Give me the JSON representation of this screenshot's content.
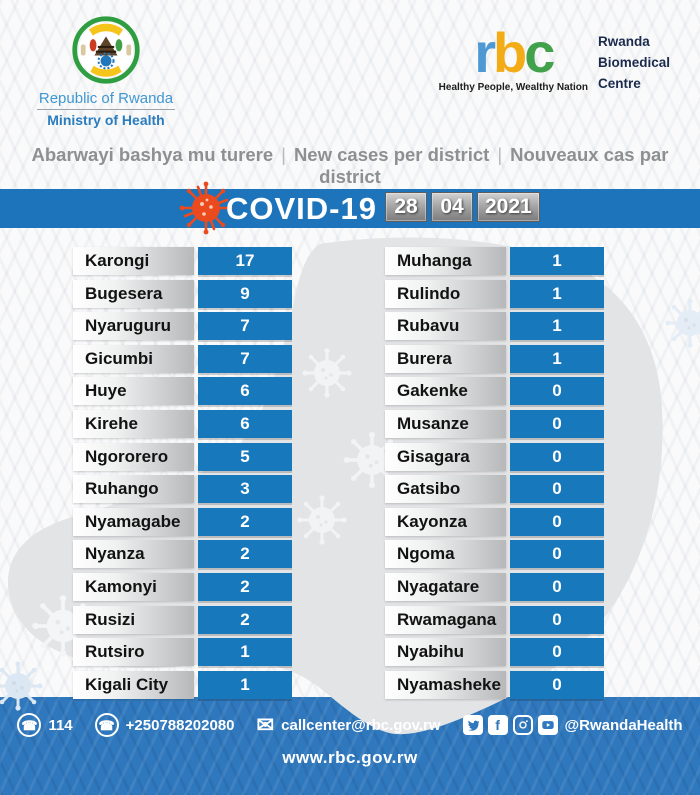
{
  "header": {
    "coat_of_arms": "rwanda-coat-of-arms",
    "republic": "Republic of Rwanda",
    "ministry": "Ministry of Health",
    "rbc_logo": {
      "letter_r": "r",
      "letter_b": "b",
      "letter_c": "c",
      "letter_colors": {
        "r": "#4e98d3",
        "b": "#f3ac15",
        "c": "#41a24b"
      },
      "name_lines": [
        "Rwanda",
        "Biomedical",
        "Centre"
      ],
      "tagline": "Healthy People, Wealthy Nation"
    },
    "subtitle": {
      "kinyarwanda": "Abarwayi bashya mu turere",
      "english": "New cases per district",
      "french": "Nouveaux cas par district",
      "separator": "|"
    }
  },
  "banner": {
    "title": "COVID-19",
    "date": {
      "day": "28",
      "month": "04",
      "year": "2021"
    }
  },
  "chart_data": {
    "type": "table",
    "title": "COVID-19 new cases per district",
    "date": "28/04/2021",
    "columns": [
      "District",
      "New cases"
    ],
    "left_column": [
      {
        "district": "Karongi",
        "cases": 17
      },
      {
        "district": "Bugesera",
        "cases": 9
      },
      {
        "district": "Nyaruguru",
        "cases": 7
      },
      {
        "district": "Gicumbi",
        "cases": 7
      },
      {
        "district": "Huye",
        "cases": 6
      },
      {
        "district": "Kirehe",
        "cases": 6
      },
      {
        "district": "Ngororero",
        "cases": 5
      },
      {
        "district": "Ruhango",
        "cases": 3
      },
      {
        "district": "Nyamagabe",
        "cases": 2
      },
      {
        "district": "Nyanza",
        "cases": 2
      },
      {
        "district": "Kamonyi",
        "cases": 2
      },
      {
        "district": "Rusizi",
        "cases": 2
      },
      {
        "district": "Rutsiro",
        "cases": 1
      },
      {
        "district": "Kigali City",
        "cases": 1
      }
    ],
    "right_column": [
      {
        "district": "Muhanga",
        "cases": 1
      },
      {
        "district": "Rulindo",
        "cases": 1
      },
      {
        "district": "Rubavu",
        "cases": 1
      },
      {
        "district": "Burera",
        "cases": 1
      },
      {
        "district": "Gakenke",
        "cases": 0
      },
      {
        "district": "Musanze",
        "cases": 0
      },
      {
        "district": "Gisagara",
        "cases": 0
      },
      {
        "district": "Gatsibo",
        "cases": 0
      },
      {
        "district": "Kayonza",
        "cases": 0
      },
      {
        "district": "Ngoma",
        "cases": 0
      },
      {
        "district": "Nyagatare",
        "cases": 0
      },
      {
        "district": "Rwamagana",
        "cases": 0
      },
      {
        "district": "Nyabihu",
        "cases": 0
      },
      {
        "district": "Nyamasheke",
        "cases": 0
      }
    ]
  },
  "footer": {
    "hotline": "114",
    "phone": "+250788202080",
    "email": "callcenter@rbc.gov.rw",
    "social_handle": "@RwandaHealth",
    "website": "www.rbc.gov.rw"
  },
  "colors": {
    "banner_blue": "#1d74ba",
    "value_box_blue": "#1878bc",
    "footer_blue": "#2f78bd",
    "map_gray": "#e3e4e6",
    "subtitle_gray": "#8d9091",
    "virus_orange": "#ea4a1e"
  }
}
